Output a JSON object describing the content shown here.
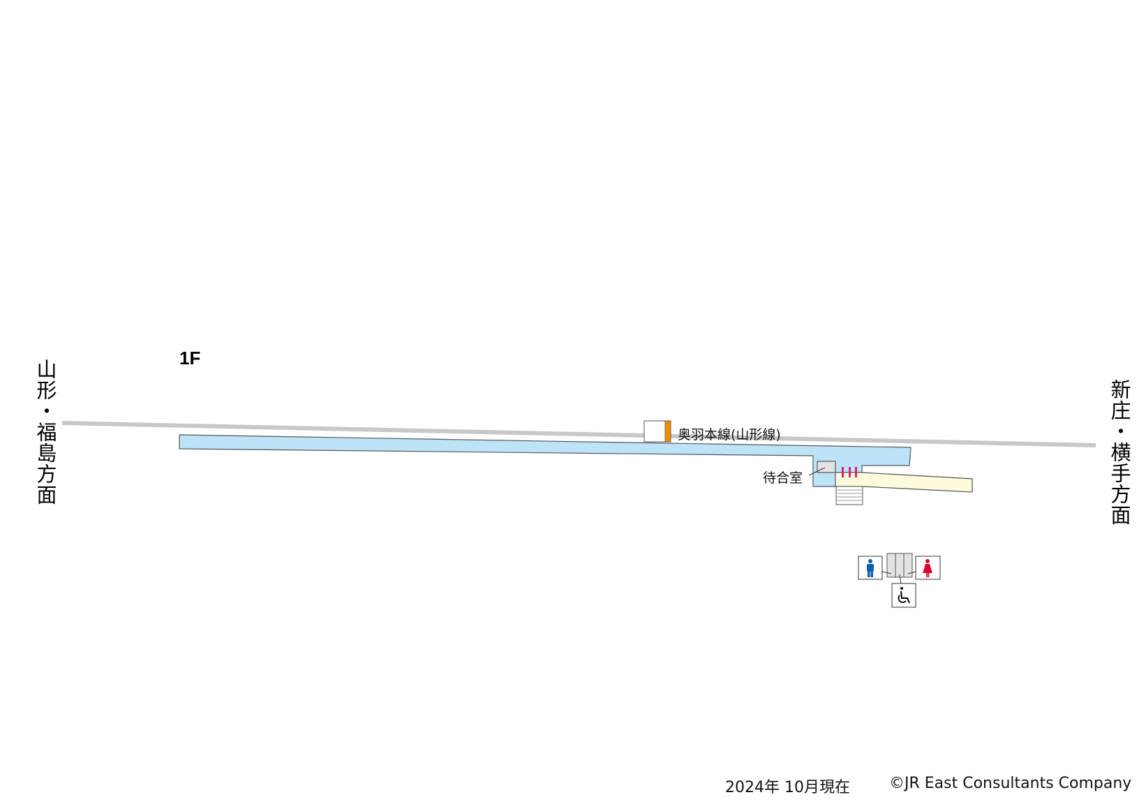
{
  "floor_label": "1F",
  "directions": {
    "left": "山形・福島方面",
    "right": "新庄・横手方面"
  },
  "line_label": "奥羽本線(山形線)",
  "waiting_room_label": "待合室",
  "footer": {
    "date": "2024年 10月現在",
    "copyright": "©JR East Consultants Company"
  },
  "colors": {
    "platform": "#bde3f7",
    "concourse": "#fefbdc",
    "track": "#c8c8c8",
    "line_color": "#f08c00",
    "gate": "#d6246e",
    "men": "#0b5fb0",
    "women": "#d3092f"
  },
  "icons": [
    "men-toilet-icon",
    "women-toilet-icon",
    "accessible-toilet-icon",
    "ticket-gate-icon",
    "stairs-icon"
  ]
}
